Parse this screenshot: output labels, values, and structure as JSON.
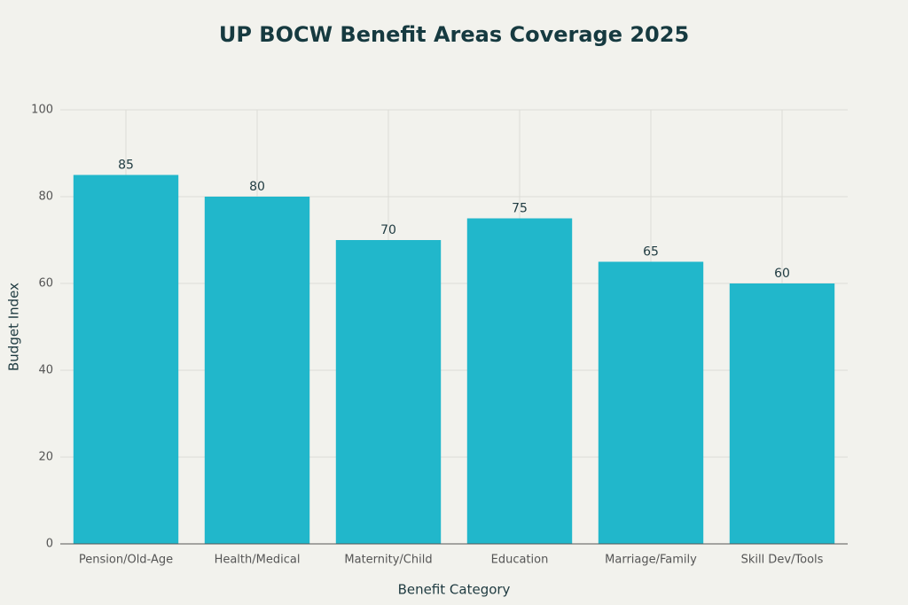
{
  "chart_data": {
    "type": "bar",
    "title": "UP BOCW Benefit Areas Coverage 2025",
    "x_label": "Benefit Category",
    "y_label": "Budget Index",
    "categories": [
      "Pension/Old-Age",
      "Health/Medical",
      "Maternity/Child",
      "Education",
      "Marriage/Family",
      "Skill Dev/Tools"
    ],
    "values": [
      85,
      80,
      70,
      75,
      65,
      60
    ],
    "color": "#21b7cb",
    "ylim": [
      0,
      100
    ],
    "yticks": [
      0,
      20,
      40,
      60,
      80,
      100
    ],
    "grid": true,
    "data_labels": true
  }
}
